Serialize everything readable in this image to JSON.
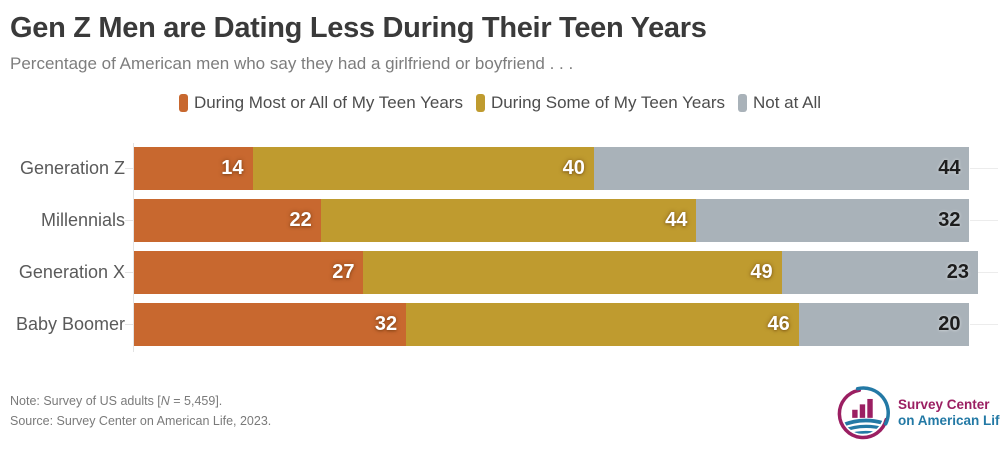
{
  "header": {
    "title": "Gen Z Men are Dating Less During Their Teen Years",
    "subtitle": "Percentage of American men who say they had a girlfriend or boyfriend . . ."
  },
  "legend": {
    "items": [
      {
        "label": "During Most or All of My Teen Years",
        "color": "#C8682F"
      },
      {
        "label": "During Some of My Teen Years",
        "color": "#BF9B2F"
      },
      {
        "label": "Not at All",
        "color": "#A9B2B9"
      }
    ]
  },
  "chart_data": {
    "type": "bar",
    "orientation": "horizontal",
    "stacked": true,
    "title": "Gen Z Men are Dating Less During Their Teen Years",
    "categories": [
      "Generation Z",
      "Millennials",
      "Generation X",
      "Baby Boomer"
    ],
    "series": [
      {
        "name": "During Most or All of My Teen Years",
        "color": "#C8682F",
        "values": [
          14,
          22,
          27,
          32
        ]
      },
      {
        "name": "During Some of My Teen Years",
        "color": "#BF9B2F",
        "values": [
          40,
          44,
          49,
          46
        ]
      },
      {
        "name": "Not at All",
        "color": "#A9B2B9",
        "values": [
          44,
          32,
          23,
          20
        ]
      }
    ],
    "xlim": [
      0,
      99
    ],
    "value_labels": "inside-end",
    "legend_position": "top-center",
    "grid": false
  },
  "footer": {
    "note_prefix": "Note: Survey of US adults [",
    "note_n": "N",
    "note_suffix": " = 5,459].",
    "source": "Source: Survey Center on American Life, 2023."
  },
  "logo": {
    "line1": "Survey Center",
    "line2": "on American Life",
    "magenta": "#9B1F62",
    "teal": "#2379A5"
  }
}
